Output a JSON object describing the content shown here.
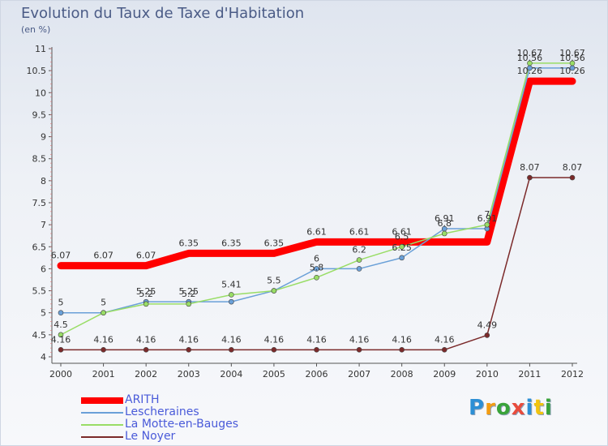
{
  "title": "Evolution du Taux de Taxe d'Habitation",
  "subtitle": "(en %)",
  "logo": {
    "text": "Proxiti",
    "colors": [
      "#2d8fd5",
      "#f39c12",
      "#3aa33a",
      "#e84c3d",
      "#2d8fd5",
      "#f1c40f",
      "#3aa33a"
    ]
  },
  "chart_data": {
    "type": "line",
    "title": "Evolution du Taux de Taxe d'Habitation",
    "subtitle": "(en %)",
    "xlabel": "",
    "ylabel": "",
    "x": [
      "2000",
      "2001",
      "2002",
      "2003",
      "2004",
      "2005",
      "2006",
      "2007",
      "2008",
      "2009",
      "2010",
      "2011",
      "2012"
    ],
    "ylim": [
      4,
      11
    ],
    "yticks": [
      "4",
      "4.5",
      "5",
      "5.5",
      "6",
      "6.5",
      "7",
      "7.5",
      "8",
      "8.5",
      "9",
      "9.5",
      "10",
      "10.5",
      "11"
    ],
    "grid": false,
    "legend_position": "bottom-left",
    "series": [
      {
        "name": "ARITH",
        "color": "#ff0000",
        "values": [
          6.07,
          6.07,
          6.07,
          6.35,
          6.35,
          6.35,
          6.61,
          6.61,
          6.61,
          6.61,
          6.61,
          10.26,
          10.26
        ],
        "labels": [
          "6.07",
          "6.07",
          "6.07",
          "6.35",
          "6.35",
          "6.35",
          "6.61",
          "6.61",
          "6.61",
          "",
          "",
          "10.26",
          "10.26"
        ]
      },
      {
        "name": "Lescheraines",
        "color": "#6aa0d8",
        "values": [
          5,
          5,
          5.25,
          5.25,
          5.25,
          5.5,
          6,
          6,
          6.25,
          6.91,
          6.91,
          10.56,
          10.56
        ],
        "labels": [
          "5",
          "5",
          "5.25",
          "5.25",
          "",
          "",
          "6",
          "",
          "6.25",
          "6.91",
          "6.91",
          "10.56",
          "10.56"
        ]
      },
      {
        "name": "La Motte-en-Bauges",
        "color": "#99dd66",
        "values": [
          4.5,
          5,
          5.2,
          5.2,
          5.41,
          5.5,
          5.8,
          6.2,
          6.5,
          6.8,
          7,
          10.67,
          10.67
        ],
        "labels": [
          "4.5",
          "",
          "5.2",
          "5.2",
          "5.41",
          "5.5",
          "5.8",
          "6.2",
          "6.5",
          "6.8",
          "7",
          "10.67",
          "10.67"
        ]
      },
      {
        "name": "Le Noyer",
        "color": "#7b2a2a",
        "values": [
          4.16,
          4.16,
          4.16,
          4.16,
          4.16,
          4.16,
          4.16,
          4.16,
          4.16,
          4.16,
          4.49,
          8.07,
          8.07
        ],
        "labels": [
          "4.16",
          "4.16",
          "4.16",
          "4.16",
          "4.16",
          "4.16",
          "4.16",
          "4.16",
          "4.16",
          "4.16",
          "4.49",
          "8.07",
          "8.07"
        ]
      }
    ]
  }
}
